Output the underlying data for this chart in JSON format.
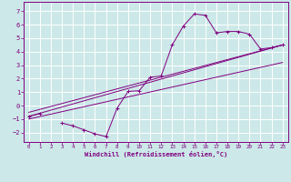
{
  "xlabel": "Windchill (Refroidissement éolien,°C)",
  "bg_color": "#cce8e8",
  "line_color": "#800080",
  "xlim": [
    -0.5,
    23.5
  ],
  "ylim": [
    -2.7,
    7.7
  ],
  "xticks": [
    0,
    1,
    2,
    3,
    4,
    5,
    6,
    7,
    8,
    9,
    10,
    11,
    12,
    13,
    14,
    15,
    16,
    17,
    18,
    19,
    20,
    21,
    22,
    23
  ],
  "yticks": [
    -2,
    -1,
    0,
    1,
    2,
    3,
    4,
    5,
    6,
    7
  ],
  "series1_x": [
    0,
    1,
    2,
    3,
    4,
    5,
    6,
    7,
    8,
    9,
    10,
    11,
    12,
    13,
    14,
    15,
    16,
    17,
    18,
    19,
    20,
    21,
    22,
    23
  ],
  "series1_y": [
    -0.8,
    -0.6,
    null,
    -1.3,
    -1.5,
    -1.8,
    -2.1,
    -2.3,
    -0.2,
    1.05,
    1.1,
    2.1,
    2.2,
    4.5,
    5.9,
    6.8,
    6.7,
    5.4,
    5.5,
    5.5,
    5.3,
    4.2,
    4.3,
    4.5
  ],
  "line1_x": [
    0,
    23
  ],
  "line1_y": [
    -0.8,
    4.5
  ],
  "line2_x": [
    0,
    23
  ],
  "line2_y": [
    -0.5,
    4.5
  ],
  "line3_x": [
    0,
    23
  ],
  "line3_y": [
    -1.0,
    3.2
  ]
}
